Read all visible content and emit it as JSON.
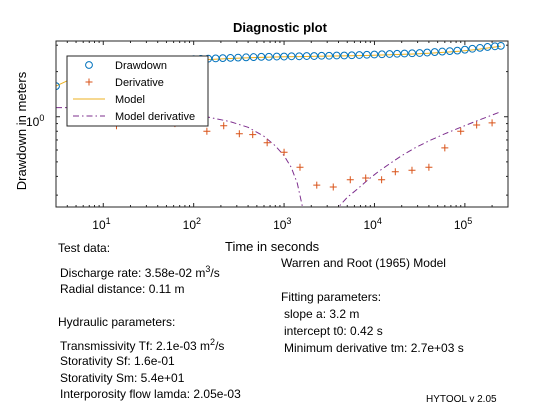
{
  "chart_data": {
    "type": "scatter",
    "title": "Diagnostic plot",
    "xlabel": "Time in seconds",
    "ylabel": "Drawdown in meters",
    "x_scale": "log",
    "y_scale": "log",
    "xlim": [
      3,
      300000
    ],
    "ylim": [
      0.25,
      3.2
    ],
    "x_ticks": [
      10,
      100,
      1000,
      10000,
      100000
    ],
    "x_tick_labels": [
      {
        "base": "10",
        "exp": "1"
      },
      {
        "base": "10",
        "exp": "2"
      },
      {
        "base": "10",
        "exp": "3"
      },
      {
        "base": "10",
        "exp": "4"
      },
      {
        "base": "10",
        "exp": "5"
      }
    ],
    "y_ticks": [
      1
    ],
    "y_tick_labels": [
      {
        "base": "10",
        "exp": "0"
      }
    ],
    "legend_position": "top-left",
    "series": [
      {
        "name": "Drawdown",
        "marker": "circle",
        "color": "#0072BD",
        "x": [
          3,
          35,
          45,
          55,
          65,
          80,
          100,
          120,
          145,
          175,
          210,
          255,
          310,
          380,
          460,
          560,
          680,
          830,
          1000,
          1210,
          1470,
          1780,
          2150,
          2600,
          3150,
          3820,
          4630,
          5610,
          6800,
          8240,
          9980,
          12100,
          14700,
          17800,
          21500,
          26100,
          31600,
          38300,
          46400,
          56200,
          68100,
          82500,
          100000,
          121000,
          147000,
          178000,
          215000,
          250000
        ],
        "y": [
          1.6,
          2.3,
          2.33,
          2.36,
          2.38,
          2.4,
          2.42,
          2.43,
          2.44,
          2.45,
          2.46,
          2.47,
          2.48,
          2.49,
          2.5,
          2.51,
          2.51,
          2.52,
          2.52,
          2.53,
          2.53,
          2.54,
          2.54,
          2.55,
          2.55,
          2.56,
          2.56,
          2.57,
          2.58,
          2.59,
          2.6,
          2.61,
          2.62,
          2.63,
          2.64,
          2.65,
          2.66,
          2.68,
          2.7,
          2.72,
          2.74,
          2.76,
          2.8,
          2.84,
          2.88,
          2.92,
          2.95,
          2.97
        ]
      },
      {
        "name": "Derivative",
        "marker": "plus",
        "color": "#D95319",
        "x": [
          14,
          23,
          38,
          62,
          100,
          140,
          215,
          320,
          450,
          650,
          1000,
          1500,
          2300,
          3500,
          5400,
          8000,
          12000,
          17000,
          26000,
          40000,
          60000,
          90000,
          135000,
          200000
        ],
        "y": [
          0.87,
          1.0,
          0.92,
          0.9,
          1.0,
          0.8,
          0.87,
          0.77,
          0.76,
          0.67,
          0.58,
          0.46,
          0.35,
          0.34,
          0.38,
          0.39,
          0.38,
          0.43,
          0.44,
          0.46,
          0.62,
          0.8,
          0.88,
          0.91
        ]
      },
      {
        "name": "Model",
        "line": "solid",
        "color": "#EDB120",
        "x": [
          3,
          5,
          8,
          12,
          18,
          25,
          35,
          50,
          70,
          100,
          150,
          220,
          320,
          450,
          700,
          1000,
          1500,
          2300,
          3500,
          5400,
          8000,
          12000,
          18000,
          27000,
          40000,
          60000,
          90000,
          135000,
          200000,
          250000
        ],
        "y": [
          1.6,
          1.85,
          2.0,
          2.1,
          2.17,
          2.23,
          2.28,
          2.32,
          2.35,
          2.38,
          2.41,
          2.44,
          2.46,
          2.48,
          2.5,
          2.51,
          2.52,
          2.53,
          2.54,
          2.55,
          2.56,
          2.58,
          2.6,
          2.62,
          2.65,
          2.69,
          2.74,
          2.81,
          2.9,
          2.95
        ]
      },
      {
        "name": "Model derivative",
        "line": "dashdot",
        "color": "#7E2F8E",
        "x": [
          3,
          6,
          10,
          20,
          40,
          80,
          150,
          250,
          400,
          600,
          800,
          1000,
          1200,
          1400,
          1600,
          4000,
          5000,
          6500,
          8500,
          11000,
          15000,
          20000,
          28000,
          40000,
          60000,
          90000,
          130000,
          180000,
          250000
        ],
        "y": [
          1.15,
          1.15,
          1.14,
          1.12,
          1.1,
          1.05,
          0.99,
          0.93,
          0.85,
          0.74,
          0.64,
          0.55,
          0.46,
          0.36,
          0.25,
          0.25,
          0.29,
          0.33,
          0.38,
          0.43,
          0.49,
          0.55,
          0.62,
          0.69,
          0.77,
          0.85,
          0.93,
          1.0,
          1.08
        ]
      }
    ]
  },
  "text_blocks": {
    "test_data_header": "Test data:",
    "discharge_rate": {
      "prefix": "Discharge rate: 3.58e-02 m",
      "sup": "3",
      "suffix": "/s"
    },
    "radial_distance": "Radial distance: 0.11 m",
    "hydraulic_header": "Hydraulic parameters:",
    "transmissivity": {
      "prefix": "Transmissivity Tf: 2.1e-03 m",
      "sup": "2",
      "suffix": "/s"
    },
    "storativity_sf": "Storativity Sf: 1.6e-01",
    "storativity_sm": "Storativity Sm: 5.4e+01",
    "interporosity": "Interporosity flow lamda: 2.05e-03",
    "model_name": "Warren and Root (1965) Model",
    "fitting_header": "Fitting parameters:",
    "slope": "slope a: 3.2 m",
    "intercept": "intercept t0: 0.42 s",
    "min_derivative": "Minimum derivative tm: 2.7e+03 s",
    "version": "HYTOOL v 2.05"
  }
}
